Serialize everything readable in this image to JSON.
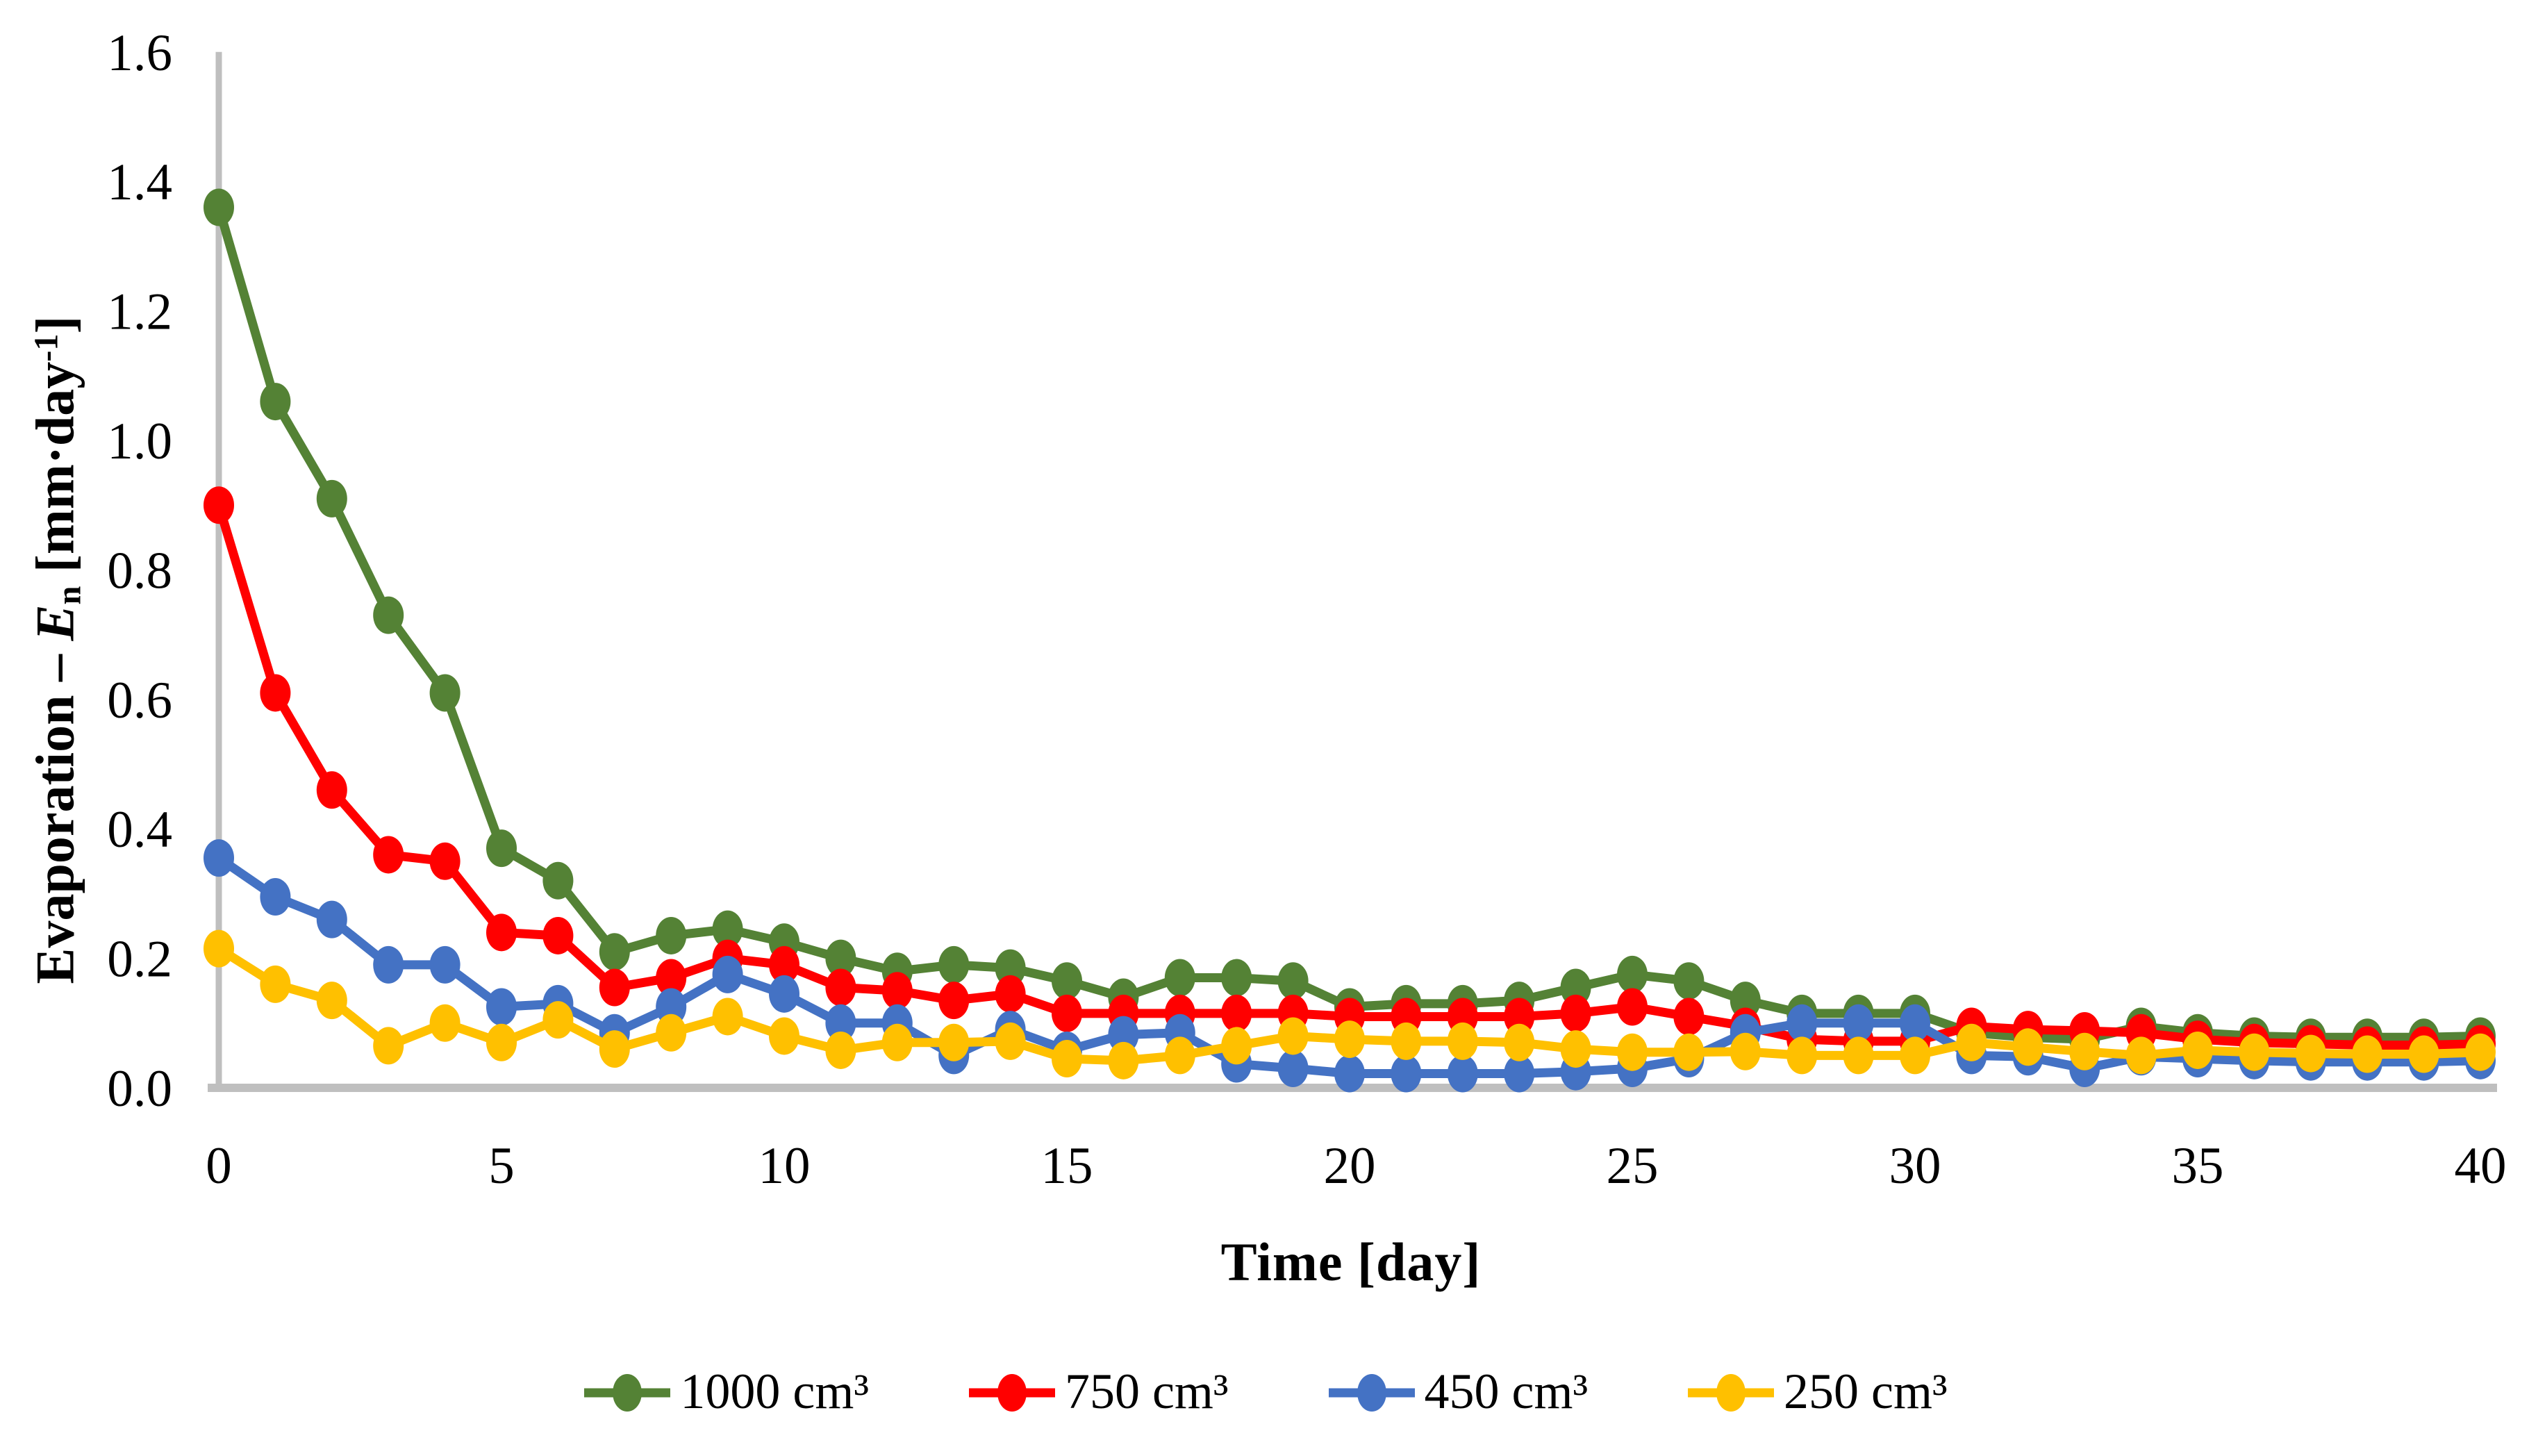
{
  "chart_data": {
    "type": "line",
    "title": "",
    "xlabel": "Time [day]",
    "ylabel": "Evaporation – En [mm·day-1]",
    "xlim": [
      0,
      40
    ],
    "ylim": [
      0,
      1.6
    ],
    "x_tick_labels": [
      "0",
      "5",
      "10",
      "15",
      "20",
      "25",
      "30",
      "35",
      "40"
    ],
    "x_tick_values": [
      0,
      5,
      10,
      15,
      20,
      25,
      30,
      35,
      40
    ],
    "y_tick_labels": [
      "0.0",
      "0.2",
      "0.4",
      "0.6",
      "0.8",
      "1.0",
      "1.2",
      "1.4",
      "1.6"
    ],
    "y_tick_values": [
      0,
      0.2,
      0.4,
      0.6,
      0.8,
      1.0,
      1.2,
      1.4,
      1.6
    ],
    "grid": false,
    "legend_position": "bottom",
    "x": [
      0,
      1,
      2,
      3,
      4,
      5,
      6,
      7,
      8,
      9,
      10,
      11,
      12,
      13,
      14,
      15,
      16,
      17,
      18,
      19,
      20,
      21,
      22,
      23,
      24,
      25,
      26,
      27,
      28,
      29,
      30,
      31,
      32,
      33,
      34,
      35,
      36,
      37,
      38,
      39,
      40
    ],
    "series": [
      {
        "name": "1000 cm³",
        "color": "#548235",
        "values": [
          1.36,
          1.06,
          0.91,
          0.73,
          0.61,
          0.37,
          0.32,
          0.21,
          0.235,
          0.245,
          0.225,
          0.2,
          0.18,
          0.19,
          0.185,
          0.165,
          0.14,
          0.17,
          0.17,
          0.165,
          0.125,
          0.13,
          0.13,
          0.135,
          0.155,
          0.175,
          0.165,
          0.135,
          0.115,
          0.115,
          0.115,
          0.085,
          0.078,
          0.075,
          0.095,
          0.085,
          0.08,
          0.078,
          0.078,
          0.078,
          0.08
        ]
      },
      {
        "name": "750 cm³",
        "color": "#FF0000",
        "values": [
          0.9,
          0.61,
          0.46,
          0.36,
          0.35,
          0.24,
          0.235,
          0.155,
          0.17,
          0.2,
          0.19,
          0.155,
          0.15,
          0.135,
          0.145,
          0.115,
          0.115,
          0.115,
          0.115,
          0.115,
          0.11,
          0.11,
          0.11,
          0.11,
          0.115,
          0.125,
          0.11,
          0.095,
          0.075,
          0.072,
          0.072,
          0.095,
          0.09,
          0.088,
          0.085,
          0.075,
          0.07,
          0.068,
          0.066,
          0.066,
          0.068
        ]
      },
      {
        "name": "450 cm³",
        "color": "#4472C4",
        "values": [
          0.355,
          0.295,
          0.26,
          0.19,
          0.19,
          0.125,
          0.13,
          0.085,
          0.125,
          0.175,
          0.145,
          0.1,
          0.1,
          0.05,
          0.09,
          0.058,
          0.082,
          0.085,
          0.037,
          0.03,
          0.022,
          0.022,
          0.022,
          0.022,
          0.025,
          0.03,
          0.045,
          0.085,
          0.1,
          0.1,
          0.1,
          0.05,
          0.048,
          0.03,
          0.048,
          0.045,
          0.042,
          0.04,
          0.04,
          0.04,
          0.042
        ]
      },
      {
        "name": "250 cm³",
        "color": "#FFC000",
        "values": [
          0.215,
          0.16,
          0.135,
          0.065,
          0.1,
          0.07,
          0.105,
          0.06,
          0.085,
          0.11,
          0.08,
          0.058,
          0.07,
          0.07,
          0.072,
          0.045,
          0.042,
          0.05,
          0.065,
          0.08,
          0.075,
          0.072,
          0.072,
          0.07,
          0.06,
          0.055,
          0.055,
          0.056,
          0.05,
          0.05,
          0.05,
          0.07,
          0.063,
          0.056,
          0.05,
          0.058,
          0.055,
          0.053,
          0.052,
          0.052,
          0.055
        ]
      }
    ],
    "axis_color": "#BFBFBF",
    "ylabel_parts": {
      "prefix": "Evaporation – ",
      "symbol": "E",
      "subscript": "n",
      "mid": " [mm·day",
      "superscript": "-1",
      "suffix": "]"
    }
  }
}
